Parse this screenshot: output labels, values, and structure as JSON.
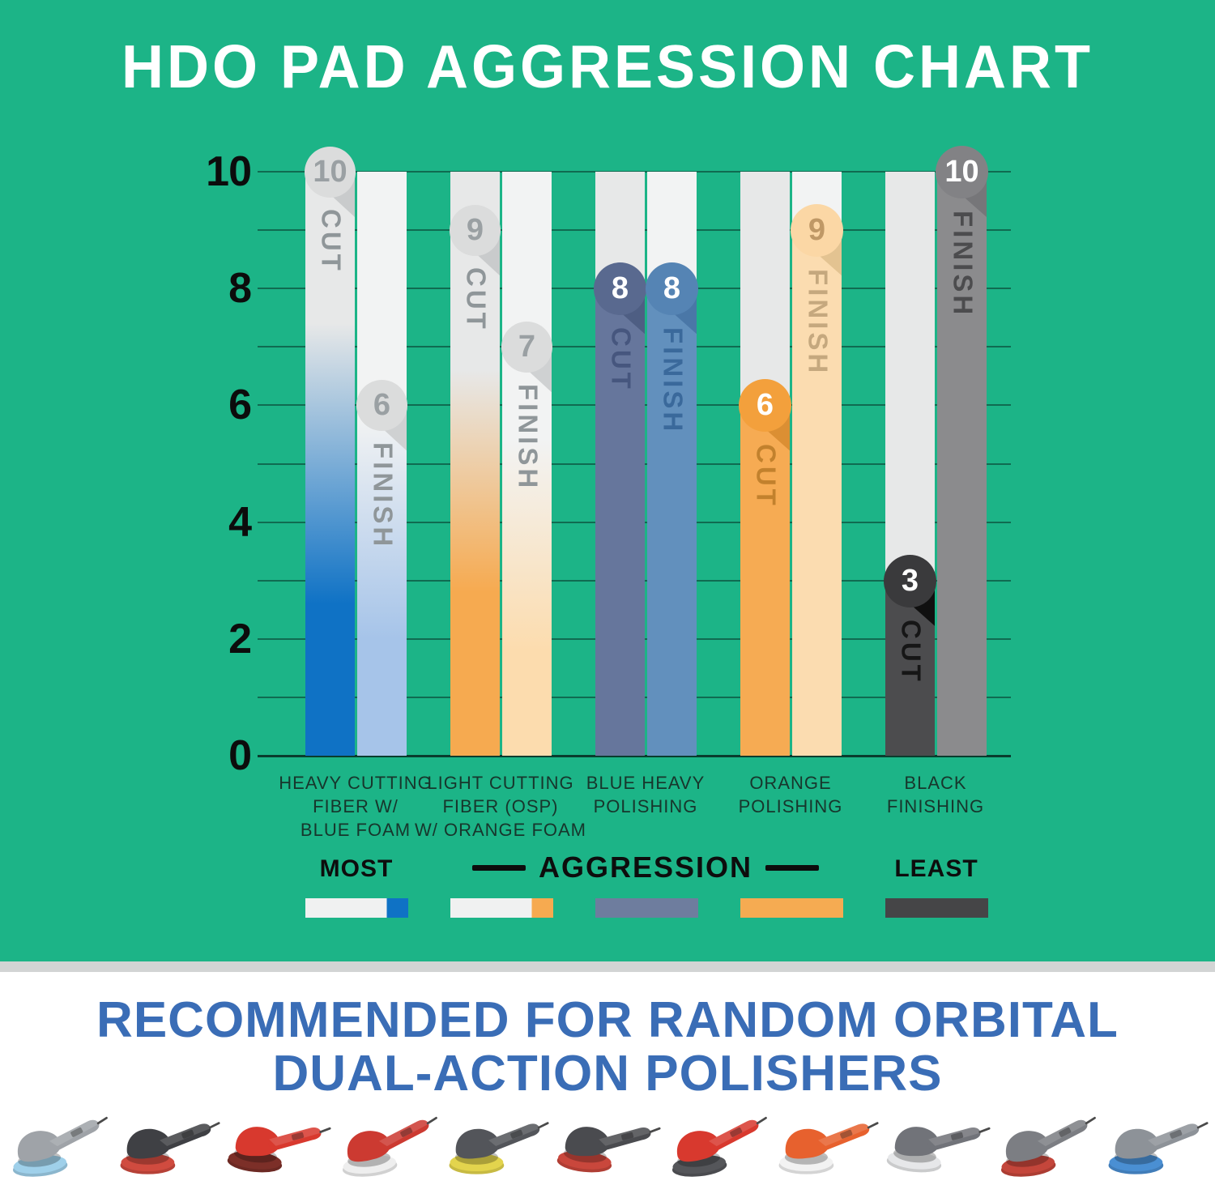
{
  "header": {
    "title": "HDO PAD AGGRESSION CHART"
  },
  "colors": {
    "background_green": "#1cb487",
    "grid_line": "#0b3328",
    "cut_column_bg": "#e7e8e8",
    "finish_column_bg": "#f2f3f3",
    "headline_blue": "#3a6db6",
    "strip_gray": "#d2d4d4"
  },
  "chart_data": {
    "type": "bar",
    "title": "HDO PAD AGGRESSION CHART",
    "xlabel": "",
    "ylabel": "",
    "ylim": [
      0,
      10
    ],
    "y_ticks": [
      10,
      8,
      6,
      4,
      2,
      0
    ],
    "gridlines": "every 1 unit, horizontal",
    "legend_position": "below",
    "categories": [
      "HEAVY CUTTING FIBER W/ BLUE FOAM",
      "LIGHT CUTTING FIBER (OSP) W/ ORANGE FOAM",
      "BLUE HEAVY POLISHING",
      "ORANGE POLISHING",
      "BLACK FINISHING"
    ],
    "series": [
      {
        "name": "CUT",
        "values": [
          10,
          9,
          8,
          6,
          3
        ]
      },
      {
        "name": "FINISH",
        "values": [
          6,
          7,
          8,
          9,
          10
        ]
      }
    ],
    "pads": [
      {
        "name_lines": [
          "HEAVY CUTTING",
          "FIBER W/",
          "BLUE FOAM"
        ],
        "cut": {
          "label": "CUT",
          "style": "gradient",
          "color": "#0f72c5",
          "stops": [
            26,
            74
          ],
          "badge_bg": "#dbdcdc",
          "num_color": "#9aa0a3",
          "fold": "#c9cbcc",
          "label_color": "#8f9699"
        },
        "finish": {
          "label": "FINISH",
          "style": "gradient",
          "color": "#a6c4e9",
          "stops": [
            42,
            80
          ],
          "badge_bg": "#dbdcdc",
          "num_color": "#9aa0a3",
          "fold": "#cfd1d2",
          "label_color": "#8f9699"
        }
      },
      {
        "name_lines": [
          "LIGHT CUTTING",
          "FIBER (OSP)",
          "W/ ORANGE FOAM"
        ],
        "cut": {
          "label": "CUT",
          "style": "gradient",
          "color": "#f6aa50",
          "stops": [
            34,
            72
          ],
          "badge_bg": "#dbdcdc",
          "num_color": "#9aa0a3",
          "fold": "#c9cbcc",
          "label_color": "#8f9699"
        },
        "finish": {
          "label": "FINISH",
          "style": "gradient",
          "color": "#fcdcae",
          "stops": [
            46,
            82
          ],
          "badge_bg": "#dbdcdc",
          "num_color": "#9aa0a3",
          "fold": "#cfd1d2",
          "label_color": "#8f9699"
        }
      },
      {
        "name_lines": [
          "BLUE HEAVY",
          "POLISHING"
        ],
        "cut": {
          "label": "CUT",
          "style": "solid",
          "color": "#66769c",
          "cap": "#59698f",
          "num_color": "#ffffff",
          "fold": "#4e5e83",
          "label_color": "#46567e"
        },
        "finish": {
          "label": "FINISH",
          "style": "solid",
          "color": "#6290bd",
          "cap": "#5584b4",
          "num_color": "#ffffff",
          "fold": "#4a77a7",
          "label_color": "#3a699b"
        }
      },
      {
        "name_lines": [
          "ORANGE",
          "POLISHING"
        ],
        "cut": {
          "label": "CUT",
          "style": "solid",
          "color": "#f6ab53",
          "cap": "#f3a03c",
          "num_color": "#ffffff",
          "fold": "#db8f33",
          "label_color": "#c2812d"
        },
        "finish": {
          "label": "FINISH",
          "style": "solid",
          "color": "#fbdcb0",
          "cap": "#fbd7a5",
          "num_color": "#bf9866",
          "fold": "#e3c391",
          "label_color": "#c5a87e"
        }
      },
      {
        "name_lines": [
          "BLACK",
          "FINISHING"
        ],
        "cut": {
          "label": "CUT",
          "style": "solid",
          "color": "#4c4c4e",
          "cap": "#3a3a3c",
          "num_color": "#ffffff",
          "fold": "#101010",
          "label_color": "#161616"
        },
        "finish": {
          "label": "FINISH",
          "style": "solid",
          "color": "#8b8b8d",
          "cap": "#828285",
          "num_color": "#ffffff",
          "fold": "#767679",
          "label_color": "#4c4c4e"
        }
      }
    ]
  },
  "legend": {
    "most": "MOST",
    "aggression": "AGGRESSION",
    "least": "LEAST",
    "swatches": [
      {
        "kind": "split",
        "base": "#f0f1f1",
        "tip": "#0f72c5"
      },
      {
        "kind": "split",
        "base": "#f0f1f1",
        "tip": "#f6aa50"
      },
      {
        "kind": "solid",
        "base": "#6e7d9e"
      },
      {
        "kind": "solid",
        "base": "#f5ab52"
      },
      {
        "kind": "solid",
        "base": "#454547"
      }
    ]
  },
  "footer": {
    "line1": "RECOMMENDED FOR RANDOM ORBITAL",
    "line2": "DUAL-ACTION POLISHERS",
    "polishers": [
      {
        "body": "#9fa3a8",
        "pad": "#9fd0ea"
      },
      {
        "body": "#3f4044",
        "pad": "#d04b3f"
      },
      {
        "body": "#d8392e",
        "pad": "#7c2f28"
      },
      {
        "body": "#cc3a31",
        "pad": "#eeeeee"
      },
      {
        "body": "#53555a",
        "pad": "#e3d44d"
      },
      {
        "body": "#4a4b4f",
        "pad": "#c9473c"
      },
      {
        "body": "#d8392e",
        "pad": "#55565a"
      },
      {
        "body": "#e7612e",
        "pad": "#f2f2f2"
      },
      {
        "body": "#717379",
        "pad": "#e6e7e9"
      },
      {
        "body": "#7c7e83",
        "pad": "#c4463b"
      },
      {
        "body": "#8d9298",
        "pad": "#4a8fd3"
      }
    ]
  }
}
